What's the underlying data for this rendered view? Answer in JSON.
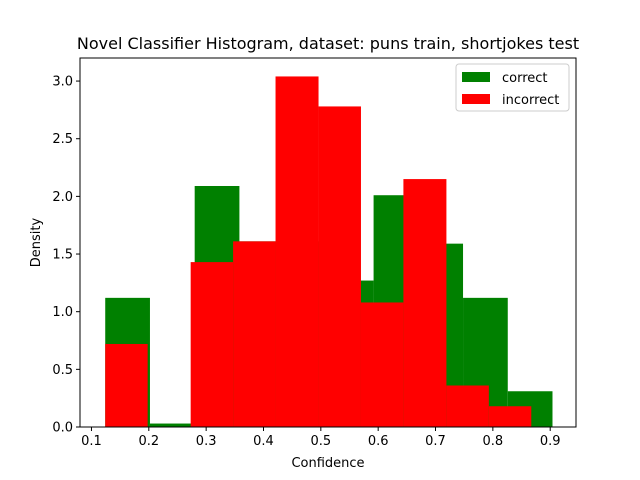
{
  "chart_data": {
    "type": "histogram",
    "title": "Novel Classifier Histogram, dataset: puns train, shortjokes test",
    "xlabel": "Confidence",
    "ylabel": "Density",
    "xlim": [
      0.08,
      0.945
    ],
    "ylim": [
      0.0,
      3.2
    ],
    "xticks": [
      0.1,
      0.2,
      0.3,
      0.4,
      0.5,
      0.6,
      0.7,
      0.8,
      0.9
    ],
    "xtick_labels": [
      "0.1",
      "0.2",
      "0.3",
      "0.4",
      "0.5",
      "0.6",
      "0.7",
      "0.8",
      "0.9"
    ],
    "yticks": [
      0.0,
      0.5,
      1.0,
      1.5,
      2.0,
      2.5,
      3.0
    ],
    "ytick_labels": [
      "0.0",
      "0.5",
      "1.0",
      "1.5",
      "2.0",
      "2.5",
      "3.0"
    ],
    "legend_position": "top-right",
    "series": [
      {
        "name": "correct",
        "color": "#008000",
        "bins": [
          {
            "x0": 0.124,
            "x1": 0.202,
            "value": 1.12
          },
          {
            "x0": 0.202,
            "x1": 0.28,
            "value": 0.03
          },
          {
            "x0": 0.28,
            "x1": 0.358,
            "value": 2.09
          },
          {
            "x0": 0.358,
            "x1": 0.436,
            "value": 1.61
          },
          {
            "x0": 0.436,
            "x1": 0.514,
            "value": 1.61
          },
          {
            "x0": 0.514,
            "x1": 0.592,
            "value": 1.27
          },
          {
            "x0": 0.592,
            "x1": 0.67,
            "value": 2.01
          },
          {
            "x0": 0.67,
            "x1": 0.748,
            "value": 1.59
          },
          {
            "x0": 0.748,
            "x1": 0.826,
            "value": 1.12
          },
          {
            "x0": 0.826,
            "x1": 0.904,
            "value": 0.31
          }
        ]
      },
      {
        "name": "incorrect",
        "color": "#ff0000",
        "bins": [
          {
            "x0": 0.124,
            "x1": 0.198,
            "value": 0.72
          },
          {
            "x0": 0.198,
            "x1": 0.273,
            "value": 0.0
          },
          {
            "x0": 0.273,
            "x1": 0.347,
            "value": 1.43
          },
          {
            "x0": 0.347,
            "x1": 0.421,
            "value": 1.61
          },
          {
            "x0": 0.421,
            "x1": 0.496,
            "value": 3.04
          },
          {
            "x0": 0.496,
            "x1": 0.57,
            "value": 2.78
          },
          {
            "x0": 0.57,
            "x1": 0.644,
            "value": 1.08
          },
          {
            "x0": 0.644,
            "x1": 0.719,
            "value": 2.15
          },
          {
            "x0": 0.719,
            "x1": 0.793,
            "value": 0.36
          },
          {
            "x0": 0.793,
            "x1": 0.867,
            "value": 0.18
          }
        ]
      }
    ]
  }
}
